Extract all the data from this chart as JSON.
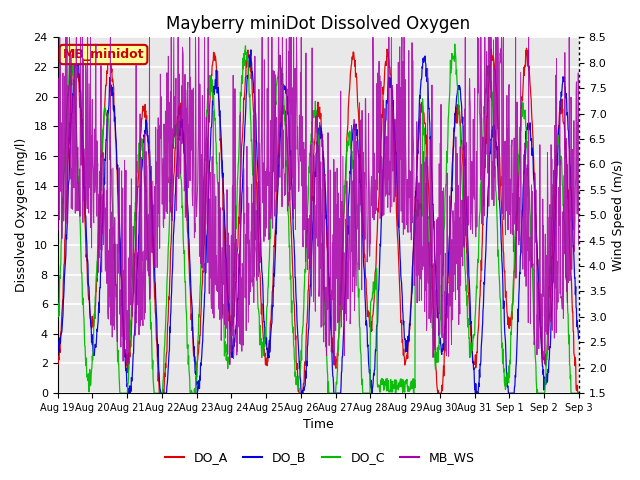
{
  "title": "Mayberry miniDot Dissolved Oxygen",
  "xlabel": "Time",
  "ylabel_left": "Dissolved Oxygen (mg/l)",
  "ylabel_right": "Wind Speed (m/s)",
  "ylim_left": [
    0,
    24
  ],
  "ylim_right": [
    1.5,
    8.5
  ],
  "yticks_left": [
    0,
    2,
    4,
    6,
    8,
    10,
    12,
    14,
    16,
    18,
    20,
    22,
    24
  ],
  "yticks_right": [
    1.5,
    2.0,
    2.5,
    3.0,
    3.5,
    4.0,
    4.5,
    5.0,
    5.5,
    6.0,
    6.5,
    7.0,
    7.5,
    8.0,
    8.5
  ],
  "colors": {
    "DO_A": "#dd0000",
    "DO_B": "#0000dd",
    "DO_C": "#00bb00",
    "MB_WS": "#aa00aa"
  },
  "annotation_text": "MB_minidot",
  "annotation_color": "#cc0000",
  "annotation_bgcolor": "#ffff99",
  "annotation_edgecolor": "#cc0000",
  "background_color": "#e8e8e8",
  "grid_color": "#ffffff",
  "title_fontsize": 12
}
